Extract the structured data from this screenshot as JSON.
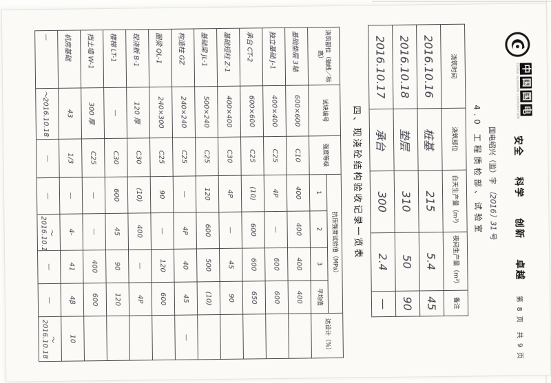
{
  "header": {
    "logo_blocks": [
      "中",
      "国",
      "国",
      "电"
    ],
    "logo_subtext": "CHINA GUODIAN CORPORATION",
    "slogan_words": [
      "安全",
      "科学",
      "创新",
      "卓越"
    ],
    "page_number": "第 8 页　共 9 页"
  },
  "doc_number": {
    "prefix": "国电绍兴（监）字",
    "handwritten": "〔2016〕31",
    "suffix": "号"
  },
  "form_title": "4.0 工程质检部、试验室",
  "pour_log": {
    "headers": [
      "浇筑时间",
      "浇筑部位",
      "白天生产量（m³）",
      "夜间生产量（m³）",
      "备注"
    ],
    "rows": [
      [
        "2016.10.16",
        "桩基",
        "215",
        "5.4",
        "45"
      ],
      [
        "2016.10.18",
        "垫层",
        "310",
        "50",
        "90"
      ],
      [
        "2016.10.17",
        "承台",
        "300",
        "2.4",
        "—"
      ]
    ]
  },
  "section_title": "四、现浇砼结构验收记录一览表",
  "main_table": {
    "col_location": "浇筑部位（轴线／标高）",
    "col_specimen": "试块编号",
    "col_grade": "强度等级",
    "group_label": "抗压强度试验值（MPa）",
    "sub_cols": [
      "1",
      "2",
      "3",
      "平均值"
    ],
    "col_remark": "达设计（%）",
    "rows": [
      [
        "基础垫层 3轴",
        "600×600",
        "C10",
        "400",
        "400",
        "400",
        "400",
        ""
      ],
      [
        "独立基础 J-1",
        "400×400",
        "C25",
        "4P",
        "—",
        "600",
        "600",
        ""
      ],
      [
        "承台 CT-2",
        "600×600",
        "C25",
        "(10)",
        "600",
        "600",
        "650",
        ""
      ],
      [
        "基础短柱 Z-1",
        "400×400",
        "C30",
        "4P",
        "—",
        "45",
        "90",
        ""
      ],
      [
        "基础梁 JL-1",
        "500×240",
        "C25",
        "120",
        "600",
        "500",
        "(10)",
        ""
      ],
      [
        "构造柱 GZ",
        "240×240",
        "C25",
        "—",
        "4P",
        "40",
        "45",
        "—"
      ],
      [
        "圈梁 QL-1",
        "240×300",
        "C25",
        "90",
        "—",
        "120",
        "600",
        ""
      ],
      [
        "现浇板 B-1",
        "120 厚",
        "C30",
        "(10)",
        "400",
        "—",
        "4P",
        ""
      ],
      [
        "楼梯 LT-1",
        "—",
        "C30",
        "600",
        "45",
        "90",
        "120",
        ""
      ],
      [
        "挡土墙 W-1",
        "300 厚",
        "C25",
        "—",
        "—",
        "400",
        "600",
        ""
      ],
      [
        "机房基础",
        "43",
        "1/3",
        "—",
        "4-",
        "41",
        "4β",
        "10"
      ],
      [
        "—",
        "～2016.10.18",
        "—",
        "—",
        "～2016.10.18",
        "—",
        "—",
        "～2016.10.18"
      ]
    ]
  }
}
